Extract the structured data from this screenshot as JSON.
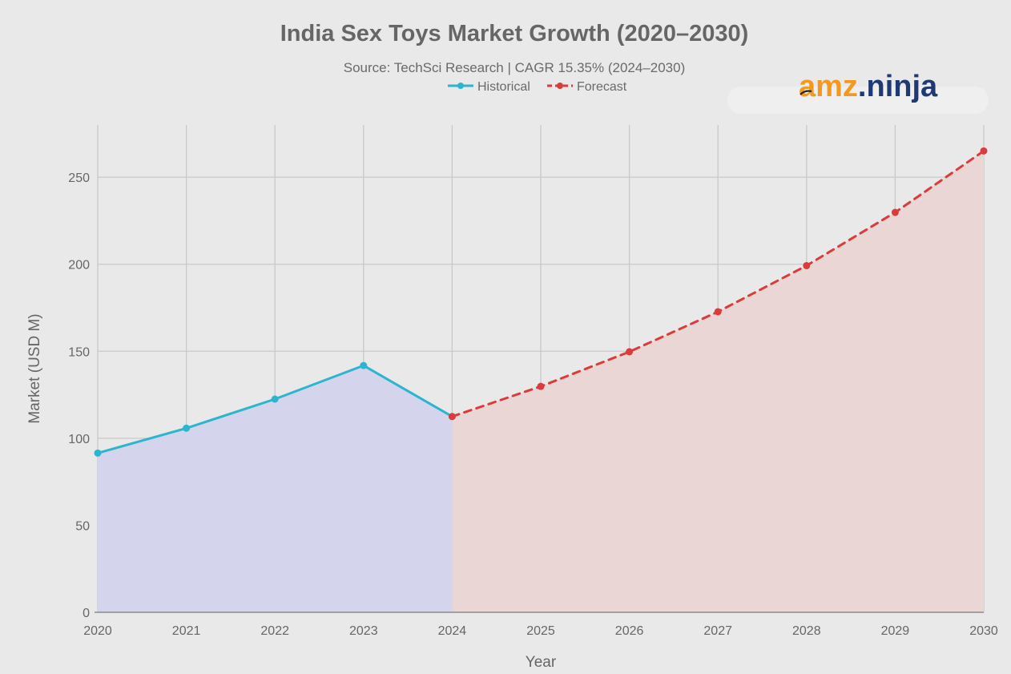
{
  "logo": {
    "part1": "amz",
    "part2": ".ninja"
  },
  "chart_data": {
    "type": "line",
    "title": "India Sex Toys Market Growth (2020–2030)",
    "subtitle": "Source: TechSci Research | CAGR 15.35% (2024–2030)",
    "xlabel": "Year",
    "ylabel": "Market (USD M)",
    "ylim": [
      0,
      280
    ],
    "yticks": [
      0,
      50,
      100,
      150,
      200,
      250
    ],
    "x": [
      2020,
      2021,
      2022,
      2023,
      2024,
      2025,
      2026,
      2027,
      2028,
      2029,
      2030
    ],
    "xlim": [
      2020,
      2030
    ],
    "grid": true,
    "legend_position": "top-center",
    "series": [
      {
        "name": "Historical",
        "color": "#2bb5cf",
        "fill": "#d4d4ec",
        "dashed": false,
        "x": [
          2020,
          2021,
          2022,
          2023,
          2024
        ],
        "values": [
          91.5,
          105.8,
          122.5,
          141.8,
          112.5
        ]
      },
      {
        "name": "Forecast",
        "color": "#dc3b3b",
        "fill": "#ebd6d6",
        "dashed": true,
        "x": [
          2024,
          2025,
          2026,
          2027,
          2028,
          2029,
          2030
        ],
        "values": [
          112.5,
          129.8,
          149.7,
          172.7,
          199.2,
          229.8,
          265.1
        ]
      }
    ]
  }
}
